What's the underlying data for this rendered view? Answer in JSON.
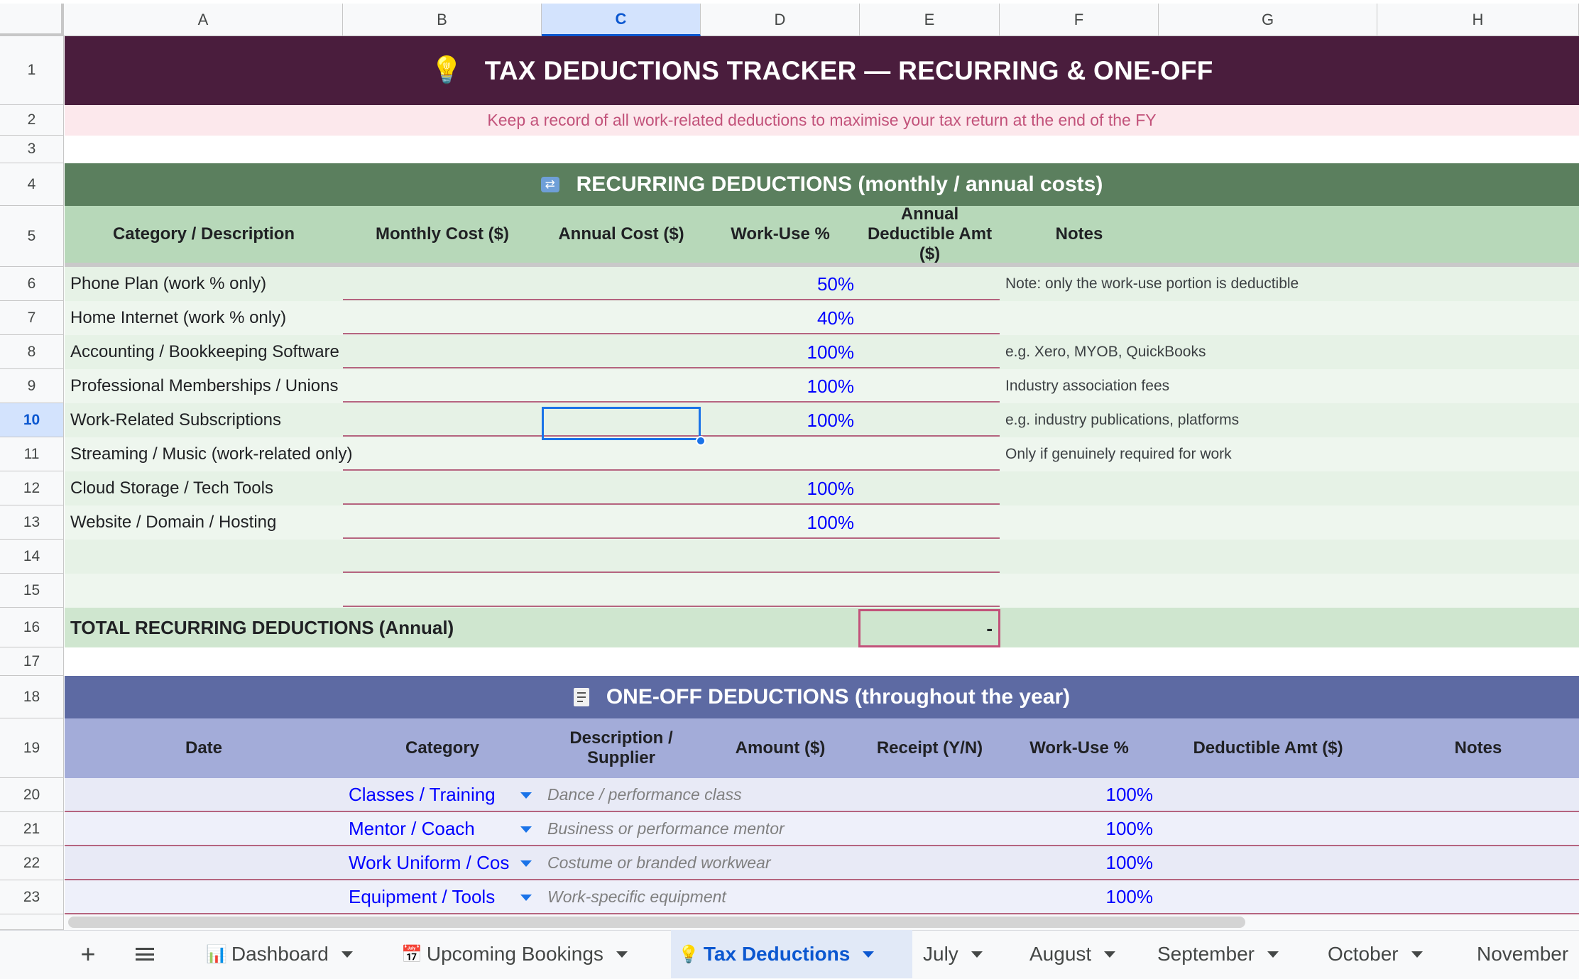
{
  "columns": [
    "A",
    "B",
    "C",
    "D",
    "E",
    "F",
    "G",
    "H"
  ],
  "rows": [
    "1",
    "2",
    "3",
    "4",
    "5",
    "6",
    "7",
    "8",
    "9",
    "10",
    "11",
    "12",
    "13",
    "14",
    "15",
    "16",
    "17",
    "18",
    "19",
    "20",
    "21",
    "22",
    "23"
  ],
  "title": {
    "icon": "💡",
    "text": "TAX DEDUCTIONS TRACKER  —  RECURRING & ONE-OFF",
    "subtitle": "Keep a record of all work-related deductions to maximise your tax return at the end of the FY"
  },
  "recurring": {
    "icon": "🔁",
    "heading": "RECURRING DEDUCTIONS  (monthly / annual costs)",
    "headers": {
      "category": "Category / Description",
      "monthly": "Monthly Cost ($)",
      "annual": "Annual Cost ($)",
      "work_use": "Work-Use %",
      "deductible": "Annual Deductible Amt ($)",
      "notes": "Notes"
    },
    "rows": [
      {
        "category": "Phone Plan  (work % only)",
        "work_use": "50%",
        "notes": "Note: only the work-use portion is deductible"
      },
      {
        "category": "Home Internet  (work % only)",
        "work_use": "40%",
        "notes": ""
      },
      {
        "category": "Accounting / Bookkeeping Software",
        "work_use": "100%",
        "notes": "e.g. Xero, MYOB, QuickBooks"
      },
      {
        "category": "Professional Memberships / Unions",
        "work_use": "100%",
        "notes": "Industry association fees"
      },
      {
        "category": "Work-Related Subscriptions",
        "work_use": "100%",
        "notes": "e.g. industry publications, platforms"
      },
      {
        "category": "Streaming / Music  (work-related only)",
        "work_use": "",
        "notes": "Only if genuinely required for work"
      },
      {
        "category": "Cloud Storage / Tech Tools",
        "work_use": "100%",
        "notes": ""
      },
      {
        "category": "Website / Domain / Hosting",
        "work_use": "100%",
        "notes": ""
      },
      {
        "category": "",
        "work_use": "",
        "notes": ""
      },
      {
        "category": "",
        "work_use": "",
        "notes": ""
      }
    ],
    "total_label": "TOTAL RECURRING DEDUCTIONS (Annual)",
    "total_value": "-"
  },
  "oneoff": {
    "icon": "🧾",
    "heading": "ONE-OFF DEDUCTIONS  (throughout the year)",
    "headers": {
      "date": "Date",
      "category": "Category",
      "description": "Description / Supplier",
      "amount": "Amount ($)",
      "receipt": "Receipt (Y/N)",
      "work_use": "Work-Use %",
      "deductible": "Deductible Amt ($)",
      "notes": "Notes"
    },
    "rows": [
      {
        "category": "Classes / Training",
        "description": "Dance / performance class",
        "work_use": "100%"
      },
      {
        "category": "Mentor / Coach",
        "description": "Business or performance mentor",
        "work_use": "100%"
      },
      {
        "category": "Work Uniform / Cos",
        "description": "Costume or branded workwear",
        "work_use": "100%"
      },
      {
        "category": "Equipment / Tools",
        "description": "Work-specific equipment",
        "work_use": "100%"
      }
    ]
  },
  "tabs": [
    {
      "icon": "📊",
      "label": "Dashboard"
    },
    {
      "icon": "📅",
      "label": "Upcoming Bookings"
    },
    {
      "icon": "💡",
      "label": "Tax Deductions"
    },
    {
      "icon": "",
      "label": "July"
    },
    {
      "icon": "",
      "label": "August"
    },
    {
      "icon": "",
      "label": "September"
    },
    {
      "icon": "",
      "label": "October"
    },
    {
      "icon": "",
      "label": "November"
    }
  ],
  "colors": {
    "title_bg": "#4a1d3d",
    "subtitle_bg": "#fce8ec",
    "subtitle_text": "#c2527a",
    "recurring_bg": "#5b7f5e",
    "recurring_header_bg": "#b7d8b9",
    "row_light": "#eef6ee",
    "row_alt": "#e6f2e6",
    "total_bg": "#cfe6cf",
    "oneoff_bg": "#5d6aa3",
    "oneoff_header_bg": "#a3acd9",
    "oneoff_row": "#e8eaf6",
    "input_blue": "#0000ff",
    "selection": "#1a73e8"
  }
}
